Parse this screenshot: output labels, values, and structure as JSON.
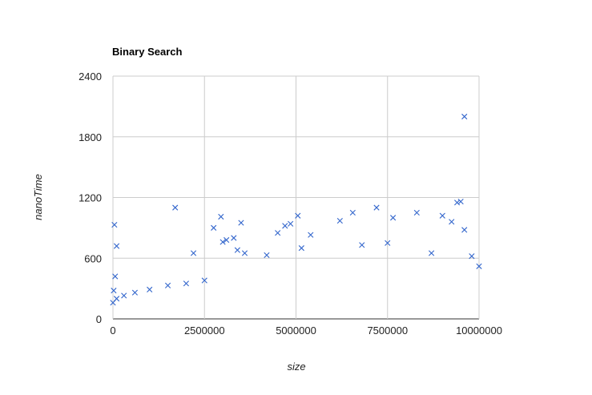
{
  "chart_data": {
    "type": "scatter",
    "title": "Binary Search",
    "xlabel": "size",
    "ylabel": "nanoTime",
    "xlim": [
      0,
      10000000
    ],
    "ylim": [
      0,
      2400
    ],
    "x_ticks": [
      0,
      2500000,
      5000000,
      7500000,
      10000000
    ],
    "x_tick_labels": [
      "0",
      "2500000",
      "5000000",
      "7500000",
      "10000000"
    ],
    "y_ticks": [
      0,
      600,
      1200,
      1800,
      2400
    ],
    "y_tick_labels": [
      "0",
      "600",
      "1200",
      "1800",
      "2400"
    ],
    "grid": true,
    "legend": "none",
    "marker": "x",
    "color": "#3366cc",
    "series": [
      {
        "points": [
          [
            0,
            160
          ],
          [
            20000,
            280
          ],
          [
            40000,
            930
          ],
          [
            60000,
            420
          ],
          [
            100000,
            720
          ],
          [
            100000,
            200
          ],
          [
            300000,
            230
          ],
          [
            600000,
            260
          ],
          [
            1000000,
            290
          ],
          [
            1500000,
            330
          ],
          [
            1700000,
            1100
          ],
          [
            2000000,
            350
          ],
          [
            2200000,
            650
          ],
          [
            2500000,
            380
          ],
          [
            2750000,
            900
          ],
          [
            2950000,
            1010
          ],
          [
            3000000,
            760
          ],
          [
            3100000,
            780
          ],
          [
            3300000,
            800
          ],
          [
            3400000,
            680
          ],
          [
            3500000,
            950
          ],
          [
            3600000,
            650
          ],
          [
            4200000,
            630
          ],
          [
            4500000,
            850
          ],
          [
            4700000,
            920
          ],
          [
            4850000,
            940
          ],
          [
            5050000,
            1020
          ],
          [
            5150000,
            700
          ],
          [
            5400000,
            830
          ],
          [
            6200000,
            970
          ],
          [
            6550000,
            1050
          ],
          [
            6800000,
            730
          ],
          [
            7200000,
            1100
          ],
          [
            7500000,
            750
          ],
          [
            7650000,
            1000
          ],
          [
            8300000,
            1050
          ],
          [
            8700000,
            650
          ],
          [
            9000000,
            1020
          ],
          [
            9250000,
            960
          ],
          [
            9400000,
            1150
          ],
          [
            9500000,
            1160
          ],
          [
            9600000,
            880
          ],
          [
            9600000,
            2000
          ],
          [
            9800000,
            620
          ],
          [
            10000000,
            520
          ]
        ]
      }
    ]
  }
}
